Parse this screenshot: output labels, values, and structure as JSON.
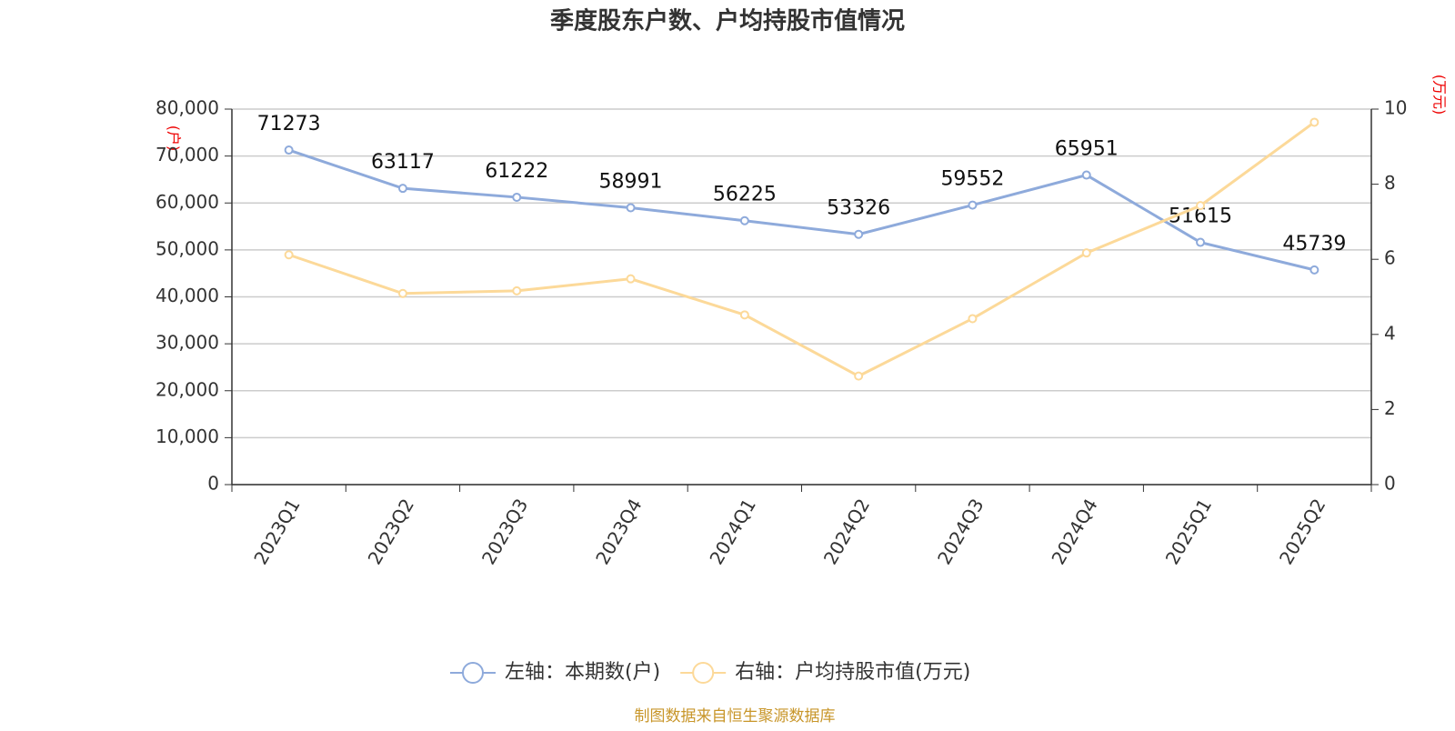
{
  "chart_data": {
    "type": "line",
    "title": "季度股东户数、户均持股市值情况",
    "y_label": "(户)",
    "y2_label": "(万元)",
    "source": "制图数据来自恒生聚源数据库",
    "categories": [
      "2023Q1",
      "2023Q2",
      "2023Q3",
      "2023Q4",
      "2024Q1",
      "2024Q2",
      "2024Q3",
      "2024Q4",
      "2025Q1",
      "2025Q2"
    ],
    "series": [
      {
        "name": "左轴：本期数(户)",
        "color": "#8eaadb",
        "values": [
          71273,
          63117,
          61222,
          58991,
          56225,
          53326,
          59552,
          65951,
          51615,
          45739
        ]
      },
      {
        "name": "右轴：户均持股市值(万元)",
        "color": "#fcd999",
        "axis": "y2",
        "values": [
          6.12,
          5.09,
          5.16,
          5.48,
          4.52,
          2.89,
          4.42,
          6.17,
          7.43,
          9.65
        ]
      }
    ],
    "ylim": [
      0,
      80000
    ],
    "yticks": [
      {
        "value": 0,
        "label": "0"
      },
      {
        "value": 10000,
        "label": "10,000"
      },
      {
        "value": 20000,
        "label": "20,000"
      },
      {
        "value": 30000,
        "label": "30,000"
      },
      {
        "value": 40000,
        "label": "40,000"
      },
      {
        "value": 50000,
        "label": "50,000"
      },
      {
        "value": 60000,
        "label": "60,000"
      },
      {
        "value": 70000,
        "label": "70,000"
      },
      {
        "value": 80000,
        "label": "80,000"
      }
    ],
    "y2lim": [
      0,
      10
    ],
    "y2ticks": [
      0,
      2,
      4,
      6,
      8,
      10
    ],
    "grid": true
  }
}
